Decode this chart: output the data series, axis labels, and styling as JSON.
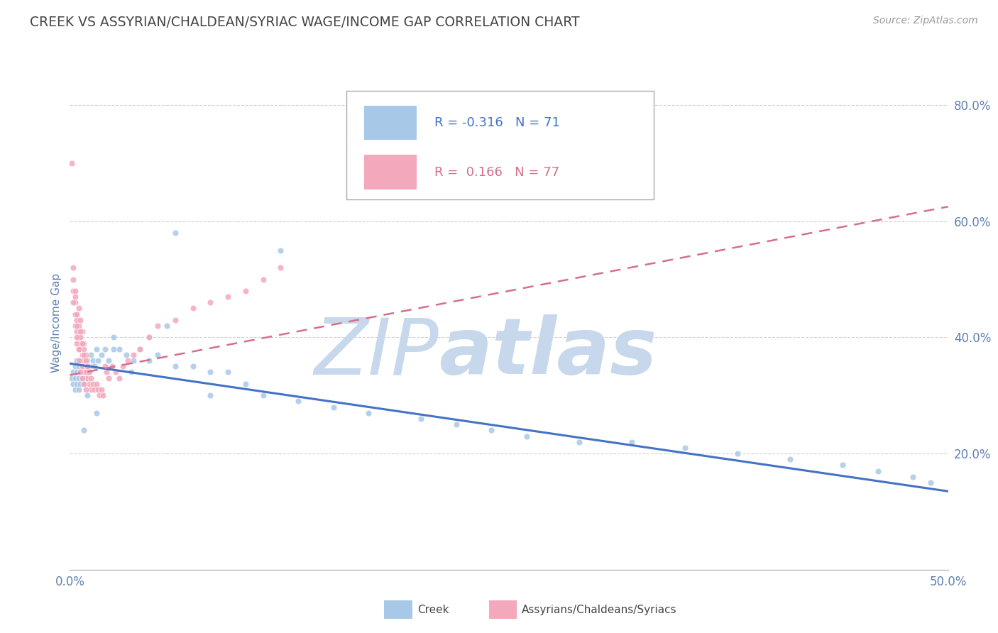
{
  "title": "CREEK VS ASSYRIAN/CHALDEAN/SYRIAC WAGE/INCOME GAP CORRELATION CHART",
  "source_text": "Source: ZipAtlas.com",
  "ylabel": "Wage/Income Gap",
  "xlim": [
    0.0,
    0.5
  ],
  "ylim": [
    0.0,
    0.85
  ],
  "ytick_positions": [
    0.2,
    0.4,
    0.6,
    0.8
  ],
  "ytick_labels": [
    "20.0%",
    "40.0%",
    "60.0%",
    "80.0%"
  ],
  "creek_R": -0.316,
  "creek_N": 71,
  "acs_R": 0.166,
  "acs_N": 77,
  "creek_color": "#a8c8e8",
  "acs_color": "#f4a8bc",
  "creek_line_color": "#4472c4",
  "acs_line_color": "#d4708a",
  "background_color": "#ffffff",
  "grid_color": "#cccccc",
  "title_color": "#444444",
  "axis_label_color": "#6080b0",
  "tick_color": "#6080b0",
  "watermark_zip_color": "#c8d8ec",
  "watermark_atlas_color": "#c8d8ec",
  "legend_label1": "Creek",
  "legend_label2": "Assyrians/Chaldeans/Syriacs",
  "creek_x": [
    0.001,
    0.002,
    0.002,
    0.003,
    0.003,
    0.003,
    0.004,
    0.004,
    0.004,
    0.005,
    0.005,
    0.005,
    0.006,
    0.006,
    0.006,
    0.007,
    0.007,
    0.008,
    0.008,
    0.009,
    0.009,
    0.01,
    0.01,
    0.011,
    0.012,
    0.013,
    0.014,
    0.015,
    0.016,
    0.018,
    0.02,
    0.022,
    0.025,
    0.028,
    0.032,
    0.036,
    0.04,
    0.045,
    0.05,
    0.06,
    0.07,
    0.08,
    0.09,
    0.1,
    0.11,
    0.13,
    0.15,
    0.17,
    0.2,
    0.22,
    0.24,
    0.26,
    0.29,
    0.32,
    0.35,
    0.38,
    0.41,
    0.44,
    0.46,
    0.48,
    0.49,
    0.12,
    0.06,
    0.045,
    0.055,
    0.08,
    0.035,
    0.025,
    0.015,
    0.01,
    0.008
  ],
  "creek_y": [
    0.33,
    0.34,
    0.32,
    0.35,
    0.33,
    0.31,
    0.36,
    0.34,
    0.32,
    0.35,
    0.33,
    0.31,
    0.34,
    0.36,
    0.32,
    0.35,
    0.33,
    0.34,
    0.32,
    0.35,
    0.33,
    0.36,
    0.34,
    0.35,
    0.37,
    0.36,
    0.35,
    0.38,
    0.36,
    0.37,
    0.38,
    0.36,
    0.4,
    0.38,
    0.37,
    0.36,
    0.38,
    0.36,
    0.37,
    0.35,
    0.35,
    0.34,
    0.34,
    0.32,
    0.3,
    0.29,
    0.28,
    0.27,
    0.26,
    0.25,
    0.24,
    0.23,
    0.22,
    0.22,
    0.21,
    0.2,
    0.19,
    0.18,
    0.17,
    0.16,
    0.15,
    0.55,
    0.58,
    0.4,
    0.42,
    0.3,
    0.34,
    0.38,
    0.27,
    0.3,
    0.24
  ],
  "acs_x": [
    0.001,
    0.002,
    0.002,
    0.003,
    0.003,
    0.003,
    0.004,
    0.004,
    0.004,
    0.005,
    0.005,
    0.005,
    0.006,
    0.006,
    0.007,
    0.007,
    0.007,
    0.008,
    0.008,
    0.008,
    0.009,
    0.009,
    0.01,
    0.01,
    0.011,
    0.011,
    0.012,
    0.012,
    0.013,
    0.014,
    0.015,
    0.016,
    0.017,
    0.018,
    0.019,
    0.02,
    0.021,
    0.022,
    0.024,
    0.026,
    0.028,
    0.03,
    0.033,
    0.036,
    0.04,
    0.045,
    0.05,
    0.06,
    0.07,
    0.08,
    0.09,
    0.1,
    0.11,
    0.12,
    0.005,
    0.006,
    0.007,
    0.008,
    0.009,
    0.01,
    0.003,
    0.004,
    0.004,
    0.005,
    0.005,
    0.006,
    0.007,
    0.008,
    0.009,
    0.003,
    0.002,
    0.002,
    0.003,
    0.004,
    0.006,
    0.007,
    0.008
  ],
  "acs_y": [
    0.7,
    0.52,
    0.48,
    0.46,
    0.44,
    0.42,
    0.43,
    0.41,
    0.39,
    0.42,
    0.4,
    0.38,
    0.4,
    0.38,
    0.39,
    0.37,
    0.35,
    0.38,
    0.36,
    0.34,
    0.36,
    0.34,
    0.35,
    0.33,
    0.34,
    0.32,
    0.33,
    0.31,
    0.32,
    0.31,
    0.32,
    0.31,
    0.3,
    0.31,
    0.3,
    0.35,
    0.34,
    0.33,
    0.35,
    0.34,
    0.33,
    0.35,
    0.36,
    0.37,
    0.38,
    0.4,
    0.42,
    0.43,
    0.45,
    0.46,
    0.47,
    0.48,
    0.5,
    0.52,
    0.45,
    0.43,
    0.41,
    0.39,
    0.37,
    0.35,
    0.44,
    0.42,
    0.4,
    0.38,
    0.36,
    0.34,
    0.33,
    0.32,
    0.31,
    0.48,
    0.5,
    0.46,
    0.47,
    0.44,
    0.41,
    0.39,
    0.37
  ]
}
